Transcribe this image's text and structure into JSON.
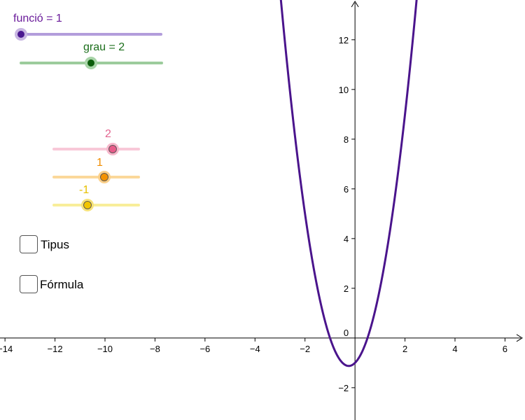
{
  "sliders": {
    "funcio": {
      "label": "funció = 1",
      "value": 1,
      "color": "#6a1b9a",
      "track_color": "#b39ddb"
    },
    "grau": {
      "label": "grau = 2",
      "value": 2,
      "color": "#1b6e1b",
      "track_color": "#9ccc9c"
    },
    "coef_a": {
      "label": "2",
      "value": 2,
      "color": "#e3648f",
      "track_color": "#f8c8d8"
    },
    "coef_b": {
      "label": "1",
      "value": 1,
      "color": "#f08c00",
      "track_color": "#fbd89a"
    },
    "coef_c": {
      "label": "-1",
      "value": -1,
      "color": "#e6c000",
      "track_color": "#f8ee9a"
    }
  },
  "checkboxes": [
    {
      "label": "Tipus",
      "checked": false
    },
    {
      "label": "Fórmula",
      "checked": false
    }
  ],
  "chart_data": {
    "type": "line",
    "function": "2x^2 + x - 1",
    "series": [
      {
        "values_fn": "2*x*x + x - 1",
        "color": "#4a148c"
      }
    ],
    "xlim": [
      -14.2,
      6.8
    ],
    "ylim": [
      -3.3,
      13.6
    ],
    "x_ticks": [
      -14,
      -12,
      -10,
      -8,
      -6,
      -4,
      -2,
      2,
      4,
      6
    ],
    "y_ticks": [
      -2,
      2,
      4,
      6,
      8,
      10,
      12
    ],
    "origin_label": "0",
    "grid": false
  }
}
